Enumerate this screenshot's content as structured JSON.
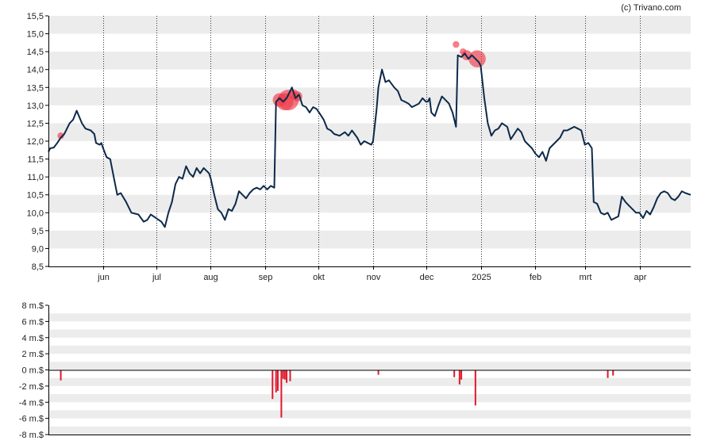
{
  "credit": "(c) Trivano.com",
  "colors": {
    "price_line": "#0d2a4a",
    "flow_bar": "#e0192d",
    "marker": "#ef3a4a",
    "band": "#ececec",
    "axis": "#000000"
  },
  "chart_data": [
    {
      "type": "line",
      "title": "",
      "y_ticks": [
        "15,5",
        "15,0",
        "14,5",
        "14,0",
        "13,5",
        "13,0",
        "12,5",
        "12,0",
        "11,5",
        "11,0",
        "10,5",
        "10,0",
        "9,5",
        "9,0",
        "8,5"
      ],
      "ylim": [
        8.5,
        15.5
      ],
      "x_ticks": [
        "jun",
        "jul",
        "aug",
        "sep",
        "okt",
        "nov",
        "dec",
        "2025",
        "feb",
        "mrt",
        "apr"
      ],
      "x_tick_dates": [
        "2024-06-01",
        "2024-07-01",
        "2024-08-01",
        "2024-09-01",
        "2024-10-01",
        "2024-11-01",
        "2024-12-01",
        "2025-01-01",
        "2025-02-01",
        "2025-03-01",
        "2025-04-01"
      ],
      "xlim": [
        "2024-05-01",
        "2025-04-30"
      ],
      "grid": "alternating horizontal bands, dotted vertical lines at month starts",
      "series": [
        {
          "points": [
            [
              "2024-05-01",
              11.7
            ],
            [
              "2024-05-02",
              11.8
            ],
            [
              "2024-05-04",
              11.82
            ],
            [
              "2024-05-06",
              11.95
            ],
            [
              "2024-05-08",
              12.1
            ],
            [
              "2024-05-10",
              12.2
            ],
            [
              "2024-05-13",
              12.5
            ],
            [
              "2024-05-15",
              12.6
            ],
            [
              "2024-05-17",
              12.85
            ],
            [
              "2024-05-20",
              12.5
            ],
            [
              "2024-05-22",
              12.35
            ],
            [
              "2024-05-25",
              12.3
            ],
            [
              "2024-05-27",
              12.2
            ],
            [
              "2024-05-28",
              11.95
            ],
            [
              "2024-05-30",
              11.9
            ],
            [
              "2024-05-31",
              11.95
            ],
            [
              "2024-06-01",
              11.8
            ],
            [
              "2024-06-03",
              11.55
            ],
            [
              "2024-06-05",
              11.5
            ],
            [
              "2024-06-07",
              11.0
            ],
            [
              "2024-06-09",
              10.5
            ],
            [
              "2024-06-11",
              10.55
            ],
            [
              "2024-06-14",
              10.3
            ],
            [
              "2024-06-17",
              10.0
            ],
            [
              "2024-06-21",
              9.95
            ],
            [
              "2024-06-24",
              9.75
            ],
            [
              "2024-06-26",
              9.8
            ],
            [
              "2024-06-28",
              9.95
            ],
            [
              "2024-07-01",
              9.85
            ],
            [
              "2024-07-04",
              9.75
            ],
            [
              "2024-07-06",
              9.6
            ],
            [
              "2024-07-08",
              10.0
            ],
            [
              "2024-07-10",
              10.3
            ],
            [
              "2024-07-12",
              10.8
            ],
            [
              "2024-07-14",
              11.0
            ],
            [
              "2024-07-16",
              10.95
            ],
            [
              "2024-07-18",
              11.3
            ],
            [
              "2024-07-20",
              11.1
            ],
            [
              "2024-07-22",
              11.0
            ],
            [
              "2024-07-24",
              11.25
            ],
            [
              "2024-07-26",
              11.1
            ],
            [
              "2024-07-28",
              11.25
            ],
            [
              "2024-07-31",
              11.1
            ],
            [
              "2024-08-01",
              10.95
            ],
            [
              "2024-08-03",
              10.5
            ],
            [
              "2024-08-05",
              10.1
            ],
            [
              "2024-08-07",
              10.0
            ],
            [
              "2024-08-09",
              9.8
            ],
            [
              "2024-08-11",
              10.1
            ],
            [
              "2024-08-13",
              10.05
            ],
            [
              "2024-08-15",
              10.25
            ],
            [
              "2024-08-17",
              10.6
            ],
            [
              "2024-08-19",
              10.5
            ],
            [
              "2024-08-21",
              10.4
            ],
            [
              "2024-08-23",
              10.55
            ],
            [
              "2024-08-25",
              10.65
            ],
            [
              "2024-08-27",
              10.7
            ],
            [
              "2024-08-29",
              10.65
            ],
            [
              "2024-08-31",
              10.75
            ],
            [
              "2024-09-02",
              10.65
            ],
            [
              "2024-09-04",
              10.75
            ],
            [
              "2024-09-06",
              10.7
            ],
            [
              "2024-09-07",
              13.1
            ],
            [
              "2024-09-09",
              13.2
            ],
            [
              "2024-09-11",
              13.1
            ],
            [
              "2024-09-13",
              13.2
            ],
            [
              "2024-09-15",
              13.4
            ],
            [
              "2024-09-16",
              13.5
            ],
            [
              "2024-09-18",
              13.2
            ],
            [
              "2024-09-20",
              13.3
            ],
            [
              "2024-09-22",
              13.0
            ],
            [
              "2024-09-24",
              12.95
            ],
            [
              "2024-09-26",
              12.8
            ],
            [
              "2024-09-28",
              12.95
            ],
            [
              "2024-09-30",
              12.9
            ],
            [
              "2024-10-02",
              12.75
            ],
            [
              "2024-10-04",
              12.6
            ],
            [
              "2024-10-06",
              12.35
            ],
            [
              "2024-10-08",
              12.3
            ],
            [
              "2024-10-10",
              12.2
            ],
            [
              "2024-10-13",
              12.15
            ],
            [
              "2024-10-16",
              12.25
            ],
            [
              "2024-10-18",
              12.15
            ],
            [
              "2024-10-20",
              12.3
            ],
            [
              "2024-10-23",
              12.1
            ],
            [
              "2024-10-25",
              11.9
            ],
            [
              "2024-10-27",
              12.0
            ],
            [
              "2024-10-29",
              11.95
            ],
            [
              "2024-10-31",
              11.9
            ],
            [
              "2024-11-01",
              12.0
            ],
            [
              "2024-11-03",
              12.9
            ],
            [
              "2024-11-04",
              13.5
            ],
            [
              "2024-11-06",
              14.0
            ],
            [
              "2024-11-08",
              13.65
            ],
            [
              "2024-11-10",
              13.7
            ],
            [
              "2024-11-13",
              13.5
            ],
            [
              "2024-11-15",
              13.4
            ],
            [
              "2024-11-17",
              13.15
            ],
            [
              "2024-11-19",
              13.1
            ],
            [
              "2024-11-21",
              13.05
            ],
            [
              "2024-11-23",
              12.95
            ],
            [
              "2024-11-25",
              13.0
            ],
            [
              "2024-11-27",
              13.05
            ],
            [
              "2024-11-29",
              13.2
            ],
            [
              "2024-12-01",
              13.1
            ],
            [
              "2024-12-02",
              13.1
            ],
            [
              "2024-12-03",
              13.2
            ],
            [
              "2024-12-04",
              12.8
            ],
            [
              "2024-12-06",
              12.7
            ],
            [
              "2024-12-08",
              13.0
            ],
            [
              "2024-12-10",
              13.25
            ],
            [
              "2024-12-12",
              13.15
            ],
            [
              "2024-12-14",
              13.05
            ],
            [
              "2024-12-16",
              12.8
            ],
            [
              "2024-12-18",
              12.4
            ],
            [
              "2024-12-19",
              14.4
            ],
            [
              "2024-12-21",
              14.35
            ],
            [
              "2024-12-23",
              14.45
            ],
            [
              "2024-12-25",
              14.3
            ],
            [
              "2024-12-27",
              14.4
            ],
            [
              "2024-12-29",
              14.3
            ],
            [
              "2024-12-31",
              14.2
            ],
            [
              "2025-01-01",
              14.1
            ],
            [
              "2025-01-03",
              13.2
            ],
            [
              "2025-01-05",
              12.5
            ],
            [
              "2025-01-07",
              12.15
            ],
            [
              "2025-01-09",
              12.3
            ],
            [
              "2025-01-11",
              12.35
            ],
            [
              "2025-01-13",
              12.5
            ],
            [
              "2025-01-16",
              12.4
            ],
            [
              "2025-01-18",
              12.05
            ],
            [
              "2025-01-20",
              12.2
            ],
            [
              "2025-01-22",
              12.35
            ],
            [
              "2025-01-24",
              12.25
            ],
            [
              "2025-01-26",
              12.0
            ],
            [
              "2025-01-28",
              11.9
            ],
            [
              "2025-01-30",
              11.8
            ],
            [
              "2025-02-01",
              11.65
            ],
            [
              "2025-02-03",
              11.55
            ],
            [
              "2025-02-05",
              11.7
            ],
            [
              "2025-02-07",
              11.45
            ],
            [
              "2025-02-09",
              11.8
            ],
            [
              "2025-02-11",
              11.9
            ],
            [
              "2025-02-13",
              12.0
            ],
            [
              "2025-02-15",
              12.1
            ],
            [
              "2025-02-17",
              12.3
            ],
            [
              "2025-02-19",
              12.3
            ],
            [
              "2025-02-21",
              12.35
            ],
            [
              "2025-02-23",
              12.4
            ],
            [
              "2025-02-25",
              12.35
            ],
            [
              "2025-02-27",
              12.3
            ],
            [
              "2025-03-01",
              11.9
            ],
            [
              "2025-03-03",
              11.95
            ],
            [
              "2025-03-05",
              11.8
            ],
            [
              "2025-03-06",
              10.3
            ],
            [
              "2025-03-08",
              10.25
            ],
            [
              "2025-03-10",
              10.0
            ],
            [
              "2025-03-12",
              9.95
            ],
            [
              "2025-03-14",
              10.0
            ],
            [
              "2025-03-16",
              9.8
            ],
            [
              "2025-03-18",
              9.85
            ],
            [
              "2025-03-20",
              9.9
            ],
            [
              "2025-03-22",
              10.45
            ],
            [
              "2025-03-24",
              10.3
            ],
            [
              "2025-03-26",
              10.2
            ],
            [
              "2025-03-28",
              10.1
            ],
            [
              "2025-03-30",
              10.0
            ],
            [
              "2025-04-01",
              10.0
            ],
            [
              "2025-04-03",
              9.85
            ],
            [
              "2025-04-05",
              10.05
            ],
            [
              "2025-04-07",
              9.95
            ],
            [
              "2025-04-09",
              10.15
            ],
            [
              "2025-04-11",
              10.4
            ],
            [
              "2025-04-13",
              10.55
            ],
            [
              "2025-04-15",
              10.6
            ],
            [
              "2025-04-17",
              10.55
            ],
            [
              "2025-04-19",
              10.4
            ],
            [
              "2025-04-21",
              10.35
            ],
            [
              "2025-04-23",
              10.45
            ],
            [
              "2025-04-25",
              10.6
            ],
            [
              "2025-04-27",
              10.55
            ],
            [
              "2025-04-30",
              10.5
            ]
          ]
        }
      ],
      "markers": [
        {
          "date": "2024-05-08",
          "value": 12.15,
          "size": 1
        },
        {
          "date": "2024-09-09",
          "value": 13.15,
          "size": 3
        },
        {
          "date": "2024-09-12",
          "value": 13.1,
          "size": 4
        },
        {
          "date": "2024-09-14",
          "value": 13.15,
          "size": 5
        },
        {
          "date": "2024-09-17",
          "value": 13.3,
          "size": 2
        },
        {
          "date": "2024-09-19",
          "value": 13.25,
          "size": 2
        },
        {
          "date": "2024-12-18",
          "value": 14.7,
          "size": 1
        },
        {
          "date": "2024-12-22",
          "value": 14.5,
          "size": 1
        },
        {
          "date": "2024-12-24",
          "value": 14.4,
          "size": 2
        },
        {
          "date": "2024-12-30",
          "value": 14.3,
          "size": 4
        }
      ]
    },
    {
      "type": "bar",
      "title": "",
      "y_ticks": [
        "8 m.$",
        "6 m.$",
        "4 m.$",
        "2 m.$",
        "0 m.$",
        "-2 m.$",
        "-4 m.$",
        "-6 m.$",
        "-8 m.$"
      ],
      "ylim": [
        -8,
        8
      ],
      "unit": "m.$",
      "grid": "alternating horizontal bands",
      "bars": [
        {
          "date": "2024-05-08",
          "value": -1.3
        },
        {
          "date": "2024-09-05",
          "value": -3.6
        },
        {
          "date": "2024-09-07",
          "value": -2.8
        },
        {
          "date": "2024-09-08",
          "value": -2.6
        },
        {
          "date": "2024-09-10",
          "value": -5.9
        },
        {
          "date": "2024-09-11",
          "value": -1.1
        },
        {
          "date": "2024-09-12",
          "value": -1.2
        },
        {
          "date": "2024-09-13",
          "value": -1.6
        },
        {
          "date": "2024-09-15",
          "value": -1.4
        },
        {
          "date": "2024-11-04",
          "value": -0.6
        },
        {
          "date": "2024-12-17",
          "value": -0.9
        },
        {
          "date": "2024-12-20",
          "value": -1.8
        },
        {
          "date": "2024-12-21",
          "value": -1.2
        },
        {
          "date": "2024-12-29",
          "value": -4.4
        },
        {
          "date": "2025-03-14",
          "value": -1.0
        },
        {
          "date": "2025-03-17",
          "value": -0.7
        }
      ]
    }
  ]
}
